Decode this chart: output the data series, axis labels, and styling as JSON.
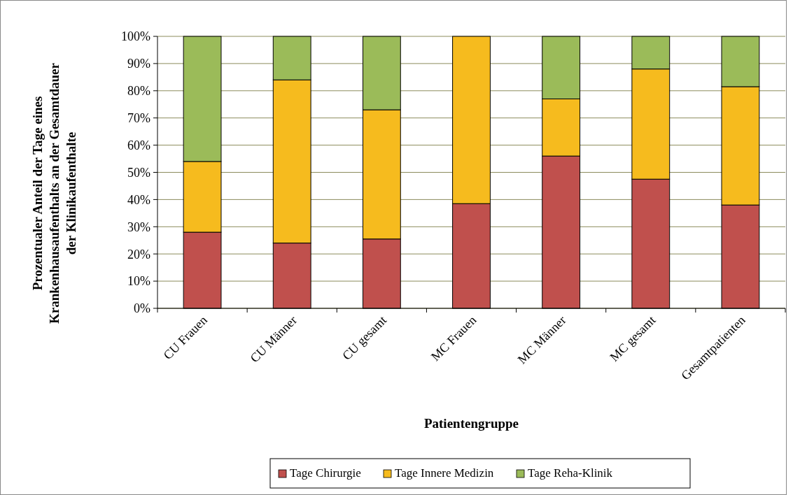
{
  "chart_data": {
    "type": "bar",
    "stacked": true,
    "xlabel": "Patientengruppe",
    "ylabel": "Prozentualer Anteil der Tage eines Krankenhausaufenthalts an der Gesamtdauer der Klinikaufenthalte",
    "categories": [
      "CU Frauen",
      "CU Männer",
      "CU gesamt",
      "MC Frauen",
      "MC Männer",
      "MC gesamt",
      "Gesamtpatienten"
    ],
    "series": [
      {
        "name": "Tage Chirurgie",
        "color": "#c0504d",
        "values": [
          28,
          24,
          25.5,
          38.5,
          56,
          47.5,
          38
        ]
      },
      {
        "name": "Tage Innere Medizin",
        "color": "#f6bb1e",
        "values": [
          26,
          60,
          47.5,
          61.5,
          21,
          40.5,
          43.5
        ]
      },
      {
        "name": "Tage Reha-Klinik",
        "color": "#9bbb59",
        "values": [
          46,
          16,
          27,
          0,
          23,
          12,
          18.5
        ]
      }
    ],
    "ylim": [
      0,
      100
    ],
    "yticks": [
      {
        "value": 0,
        "label": "0%"
      },
      {
        "value": 10,
        "label": "10%"
      },
      {
        "value": 20,
        "label": "20%"
      },
      {
        "value": 30,
        "label": "30%"
      },
      {
        "value": 40,
        "label": "40%"
      },
      {
        "value": 50,
        "label": "50%"
      },
      {
        "value": 60,
        "label": "60%"
      },
      {
        "value": 70,
        "label": "70%"
      },
      {
        "value": 80,
        "label": "80%"
      },
      {
        "value": 90,
        "label": "90%"
      },
      {
        "value": 100,
        "label": "100%"
      }
    ],
    "grid": "y",
    "legend": "bottom"
  }
}
